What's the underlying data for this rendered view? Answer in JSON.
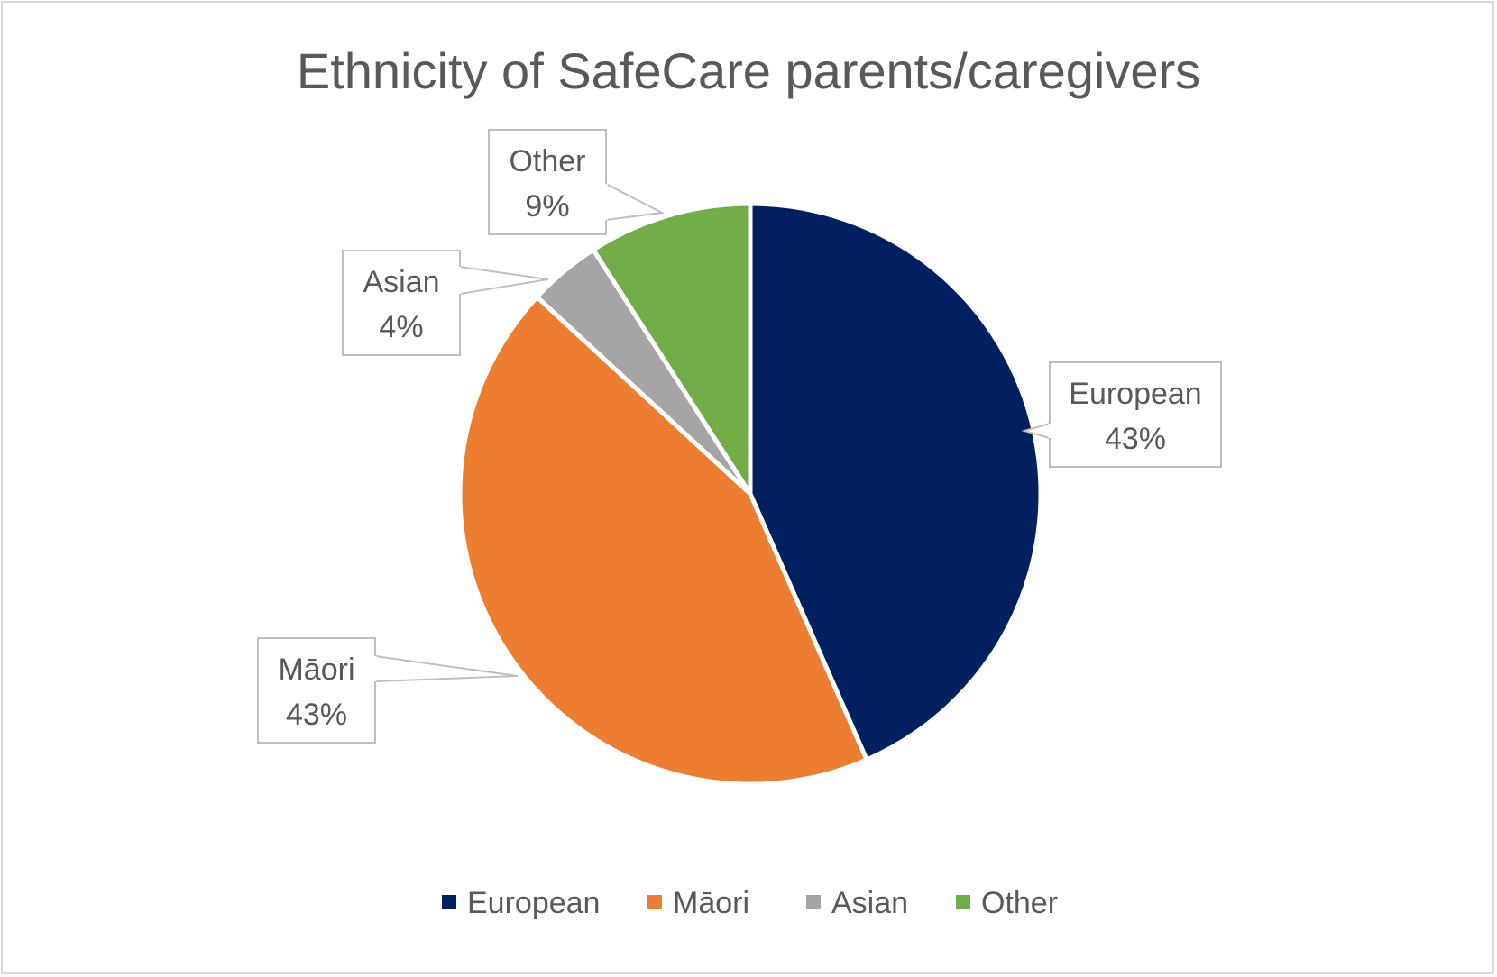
{
  "chart_data": {
    "type": "pie",
    "title": "Ethnicity of SafeCare parents/caregivers",
    "categories": [
      "European",
      "Māori",
      "Asian",
      "Other"
    ],
    "values": [
      43,
      43,
      4,
      9
    ],
    "labels": [
      "43%",
      "43%",
      "4%",
      "9%"
    ],
    "colors": [
      "#002060",
      "#ED7D31",
      "#A5A5A5",
      "#70AD47"
    ],
    "legend": "bottom",
    "data_labels": "callouts showing category name and percentage"
  }
}
